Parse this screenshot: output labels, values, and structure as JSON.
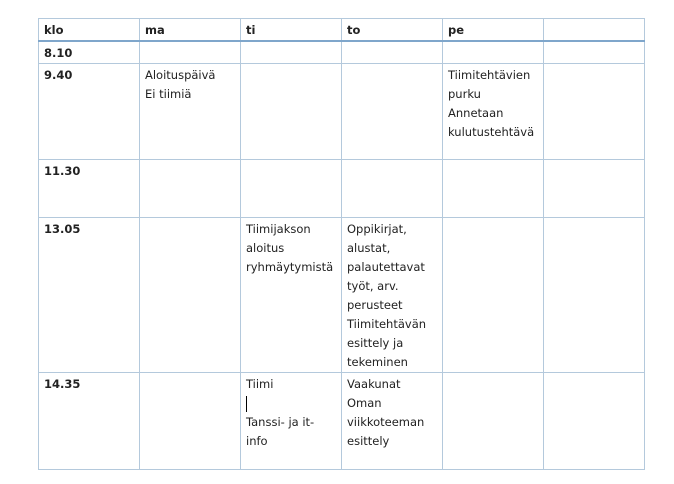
{
  "header": [
    "klo",
    "ma",
    "ti",
    "to",
    "pe",
    ""
  ],
  "rows": [
    {
      "time": "8.10",
      "cells": [
        [],
        [],
        [],
        [],
        []
      ]
    },
    {
      "time": "9.40",
      "cells": [
        [
          "Aloituspäivä",
          "Ei tiimiä"
        ],
        [],
        [],
        [
          "Tiimitehtävien",
          "purku",
          "Annetaan",
          "kulutustehtävä"
        ],
        []
      ]
    },
    {
      "time": "11.30",
      "cells": [
        [],
        [],
        [],
        [],
        []
      ]
    },
    {
      "time": "13.05",
      "cells": [
        [],
        [
          "Tiimijakson",
          "aloitus",
          "ryhmäytymistä"
        ],
        [
          "Oppikirjat,",
          "alustat,",
          "palautettavat",
          "työt, arv.",
          "perusteet",
          "Tiimitehtävän",
          "esittely ja",
          "tekeminen"
        ],
        [],
        []
      ]
    },
    {
      "time": "14.35",
      "cells": [
        [],
        [
          "Tiimi",
          "|",
          "Tanssi- ja it-",
          "info"
        ],
        [
          "Vaakunat",
          "Oman",
          "viikkoteeman",
          "esittely"
        ],
        [],
        []
      ]
    }
  ]
}
